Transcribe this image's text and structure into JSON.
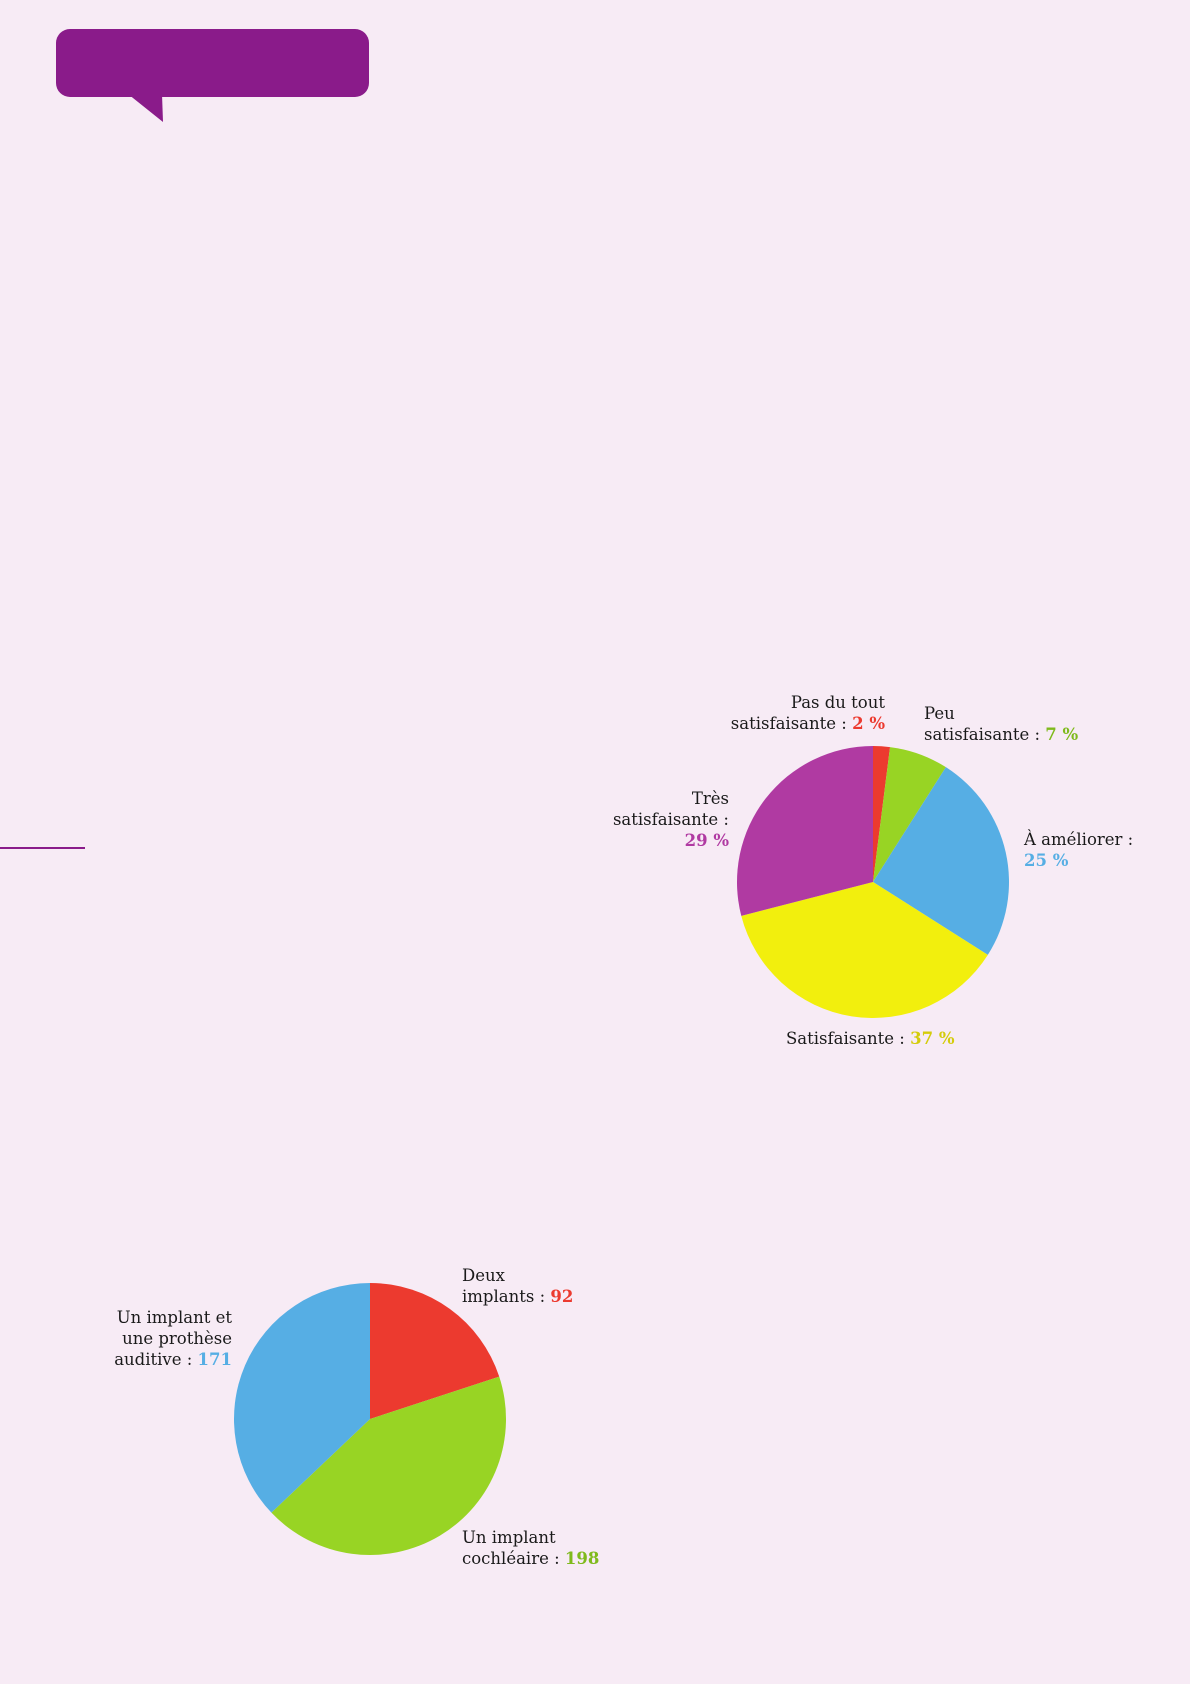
{
  "colors": {
    "background": "#f7ebf5",
    "accent": "#8a1b8a",
    "red": "#ec3a2f",
    "green": "#98d424",
    "blue": "#56aee4",
    "yellow": "#f2ef0d",
    "purple": "#b03aa2"
  },
  "chart_data": [
    {
      "type": "pie",
      "title": "",
      "slices": [
        {
          "label": "Pas du tout satisfaisante",
          "value": 2,
          "display": "2 %",
          "color": "#ec3a2f"
        },
        {
          "label": "Peu satisfaisante",
          "value": 7,
          "display": "7 %",
          "color": "#98d424"
        },
        {
          "label": "À améliorer",
          "value": 25,
          "display": "25 %",
          "color": "#56aee4"
        },
        {
          "label": "Satisfaisante",
          "value": 37,
          "display": "37 %",
          "color": "#f2ef0d"
        },
        {
          "label": "Très satisfaisante",
          "value": 29,
          "display": "29 %",
          "color": "#b03aa2"
        }
      ],
      "labels": {
        "pas_line1": "Pas du tout",
        "pas_line2": "satisfaisante :",
        "peu_line1": "Peu",
        "peu_line2": "satisfaisante :",
        "ameliorer_line1": "À améliorer :",
        "satisfaisante_line1": "Satisfaisante :",
        "tres_line1": "Très",
        "tres_line2": "satisfaisante :"
      }
    },
    {
      "type": "pie",
      "title": "",
      "slices": [
        {
          "label": "Deux implants",
          "value": 92,
          "display": "92",
          "color": "#ec3a2f"
        },
        {
          "label": "Un implant cochléaire",
          "value": 198,
          "display": "198",
          "color": "#98d424"
        },
        {
          "label": "Un implant et une prothèse auditive",
          "value": 171,
          "display": "171",
          "color": "#56aee4"
        }
      ],
      "labels": {
        "deux_line1": "Deux",
        "deux_line2": "implants :",
        "cochleaire_line1": "Un implant",
        "cochleaire_line2": "cochléaire :",
        "prothese_line1": "Un implant et",
        "prothese_line2": "une prothèse",
        "prothese_line3": "auditive :"
      }
    }
  ]
}
